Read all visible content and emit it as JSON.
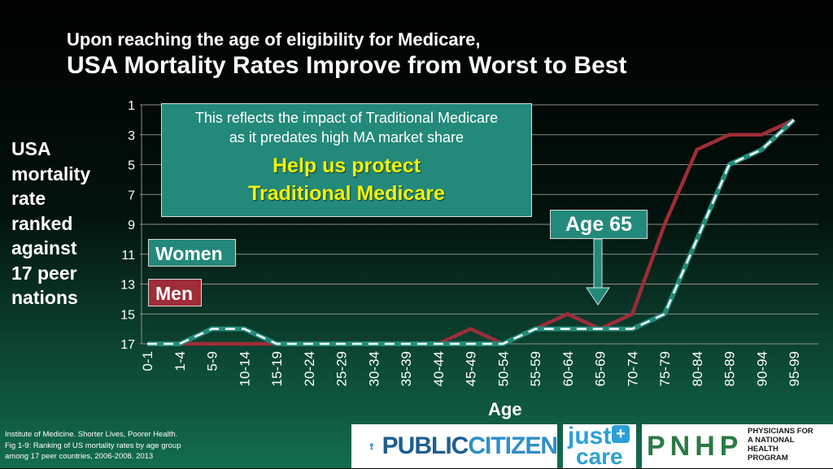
{
  "title": {
    "line1": "Upon reaching the age of eligibility for Medicare,",
    "line2": "USA Mortality Rates Improve from Worst to Best"
  },
  "chart_data": {
    "type": "line",
    "ylabel_lines": [
      "USA",
      "mortality",
      "rate",
      "ranked",
      "against",
      "17 peer",
      "nations"
    ],
    "xlabel": "Age",
    "categories": [
      "0-1",
      "1-4",
      "5-9",
      "10-14",
      "15-19",
      "20-24",
      "25-29",
      "30-34",
      "35-39",
      "40-44",
      "45-49",
      "50-54",
      "55-59",
      "60-64",
      "65-69",
      "70-74",
      "75-79",
      "80-84",
      "85-89",
      "90-94",
      "95-99"
    ],
    "yticks": [
      1,
      3,
      5,
      7,
      9,
      11,
      13,
      15,
      17
    ],
    "ylim": [
      1,
      17
    ],
    "y_inverted": true,
    "grid": "horizontal",
    "series": [
      {
        "name": "Men",
        "color": "#9e2c39",
        "style": "solid",
        "values": [
          17,
          17,
          17,
          17,
          17,
          17,
          17,
          17,
          17,
          17,
          16,
          17,
          16,
          15,
          16,
          15,
          9,
          4,
          3,
          3,
          2
        ]
      },
      {
        "name": "Women",
        "color": "#23897a",
        "style": "dashed",
        "values": [
          17,
          17,
          16,
          16,
          17,
          17,
          17,
          17,
          17,
          17,
          17,
          17,
          16,
          16,
          16,
          16,
          15,
          10,
          5,
          4,
          2
        ]
      }
    ]
  },
  "callout": {
    "line1": "This reflects the impact of Traditional Medicare",
    "line2": "as it predates high MA market share",
    "highlight1": "Help us protect",
    "highlight2": "Traditional Medicare"
  },
  "legend": {
    "women": "Women",
    "men": "Men"
  },
  "annotation": {
    "age65": "Age 65"
  },
  "source": {
    "line1": "Institute of Medicine. Shorter Lives, Poorer Health.",
    "line2": "Fig 1-9: Ranking of US mortality rates by age group",
    "line3": "among 17 peer countries, 2006-2008. 2013"
  },
  "logos": {
    "public_citizen_a": "PUBLIC",
    "public_citizen_b": "CITIZEN",
    "justcare_a": "just",
    "justcare_b": "care",
    "pnhp": "PNHP",
    "pnhp_desc": [
      "PHYSICIANS FOR",
      "A NATIONAL",
      "HEALTH",
      "PROGRAM"
    ]
  },
  "colors": {
    "men": "#9e2c39",
    "women": "#23897a",
    "highlight": "#f2f20a"
  }
}
